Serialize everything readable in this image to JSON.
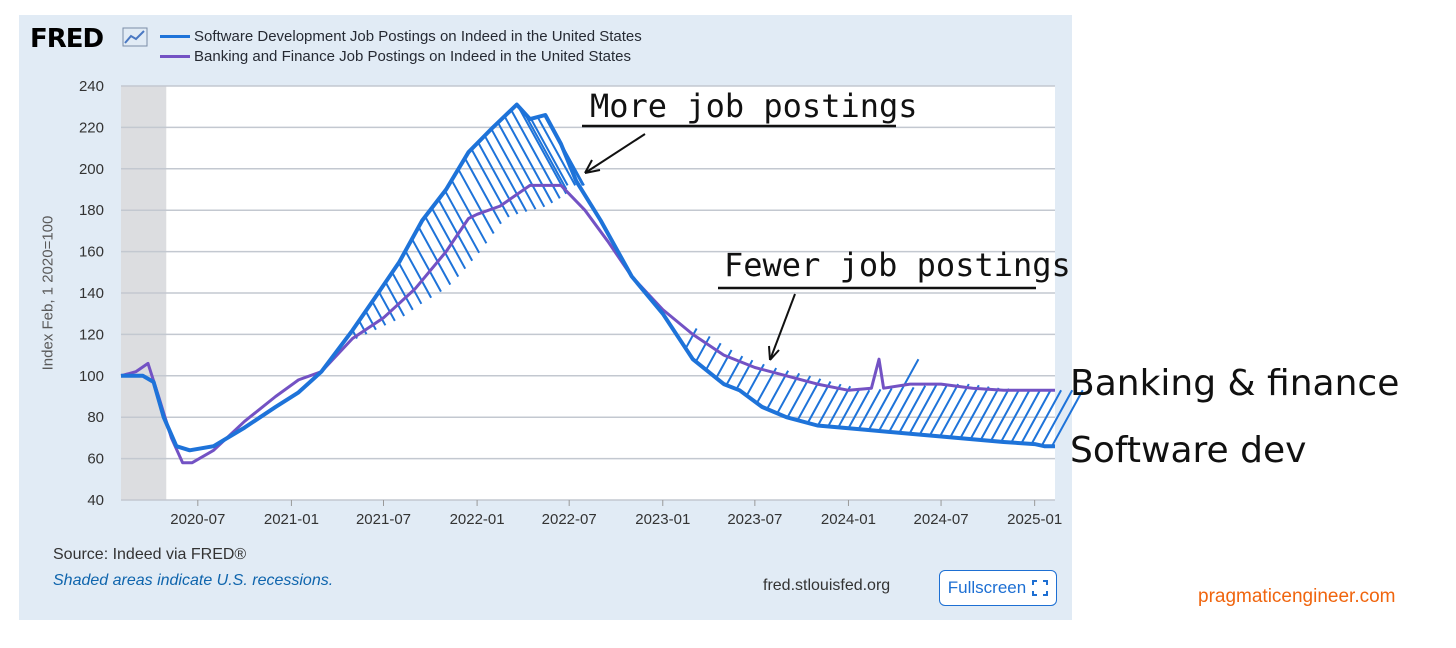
{
  "header": {
    "logo_text": "FRED",
    "logo_icon": "chart-line-icon"
  },
  "legend": [
    {
      "label": "Software Development Job Postings on Indeed in the United States",
      "color": "#1e73d9"
    },
    {
      "label": "Banking and Finance Job Postings on Indeed in the United States",
      "color": "#7352c4"
    }
  ],
  "footer": {
    "source": "Source: Indeed via FRED®",
    "shaded_note": "Shaded areas indicate U.S. recessions.",
    "site": "fred.stlouisfed.org",
    "fullscreen_label": "Fullscreen",
    "fullscreen_icon": "expand-icon"
  },
  "annotations": {
    "more": "More job postings",
    "fewer": "Fewer job postings",
    "banking_label": "Banking & finance",
    "software_label": "Software dev"
  },
  "watermark": "pragmaticengineer.com",
  "chart_data": {
    "type": "line",
    "ylabel": "Index Feb, 1 2020=100",
    "ylim": [
      40,
      240
    ],
    "yticks": [
      40,
      60,
      80,
      100,
      120,
      140,
      160,
      180,
      200,
      220,
      240
    ],
    "xlim": [
      "2020-02-01",
      "2025-02-10"
    ],
    "xticks": [
      "2020-07",
      "2021-01",
      "2021-07",
      "2022-01",
      "2022-07",
      "2023-01",
      "2023-07",
      "2024-01",
      "2024-07",
      "2025-01"
    ],
    "recession": [
      "2020-02-01",
      "2020-04-30"
    ],
    "grid": true,
    "series": [
      {
        "name": "Software Development Job Postings on Indeed in the United States",
        "color": "#1e73d9",
        "points": [
          [
            "2020-02-01",
            100
          ],
          [
            "2020-03-15",
            100
          ],
          [
            "2020-04-05",
            97
          ],
          [
            "2020-04-25",
            80
          ],
          [
            "2020-05-20",
            66
          ],
          [
            "2020-06-15",
            64
          ],
          [
            "2020-08-01",
            66
          ],
          [
            "2020-10-01",
            75
          ],
          [
            "2020-12-01",
            85
          ],
          [
            "2021-01-15",
            92
          ],
          [
            "2021-03-01",
            102
          ],
          [
            "2021-05-01",
            122
          ],
          [
            "2021-06-15",
            138
          ],
          [
            "2021-08-01",
            155
          ],
          [
            "2021-09-15",
            175
          ],
          [
            "2021-11-01",
            190
          ],
          [
            "2021-12-15",
            208
          ],
          [
            "2022-02-01",
            220
          ],
          [
            "2022-03-20",
            231
          ],
          [
            "2022-04-15",
            224
          ],
          [
            "2022-05-15",
            226
          ],
          [
            "2022-06-15",
            212
          ],
          [
            "2022-07-15",
            194
          ],
          [
            "2022-09-01",
            175
          ],
          [
            "2022-11-01",
            148
          ],
          [
            "2023-01-01",
            130
          ],
          [
            "2023-03-01",
            108
          ],
          [
            "2023-05-01",
            96
          ],
          [
            "2023-06-01",
            93
          ],
          [
            "2023-07-15",
            85
          ],
          [
            "2023-09-01",
            80
          ],
          [
            "2023-11-01",
            76
          ],
          [
            "2024-02-01",
            74
          ],
          [
            "2024-05-01",
            72
          ],
          [
            "2024-08-01",
            70
          ],
          [
            "2024-11-01",
            68
          ],
          [
            "2025-01-01",
            67
          ],
          [
            "2025-01-20",
            66
          ],
          [
            "2025-02-10",
            66
          ]
        ]
      },
      {
        "name": "Banking and Finance Job Postings on Indeed in the United States",
        "color": "#7352c4",
        "points": [
          [
            "2020-02-01",
            100
          ],
          [
            "2020-03-01",
            102
          ],
          [
            "2020-03-25",
            106
          ],
          [
            "2020-04-15",
            90
          ],
          [
            "2020-05-10",
            70
          ],
          [
            "2020-06-01",
            58
          ],
          [
            "2020-06-20",
            58
          ],
          [
            "2020-08-01",
            64
          ],
          [
            "2020-10-01",
            78
          ],
          [
            "2020-12-01",
            90
          ],
          [
            "2021-01-15",
            98
          ],
          [
            "2021-03-01",
            102
          ],
          [
            "2021-05-01",
            118
          ],
          [
            "2021-07-01",
            128
          ],
          [
            "2021-09-01",
            142
          ],
          [
            "2021-11-01",
            160
          ],
          [
            "2021-12-15",
            176
          ],
          [
            "2022-01-01",
            178
          ],
          [
            "2022-02-15",
            182
          ],
          [
            "2022-04-15",
            192
          ],
          [
            "2022-06-15",
            192
          ],
          [
            "2022-08-01",
            180
          ],
          [
            "2022-09-15",
            165
          ],
          [
            "2022-11-01",
            148
          ],
          [
            "2023-01-01",
            132
          ],
          [
            "2023-03-01",
            120
          ],
          [
            "2023-05-01",
            110
          ],
          [
            "2023-07-01",
            104
          ],
          [
            "2023-09-01",
            100
          ],
          [
            "2023-11-01",
            96
          ],
          [
            "2024-01-01",
            93
          ],
          [
            "2024-02-15",
            94
          ],
          [
            "2024-03-01",
            108
          ],
          [
            "2024-03-10",
            94
          ],
          [
            "2024-05-01",
            96
          ],
          [
            "2024-07-01",
            96
          ],
          [
            "2024-09-01",
            94
          ],
          [
            "2024-11-01",
            93
          ],
          [
            "2025-01-01",
            93
          ],
          [
            "2025-02-10",
            93
          ]
        ]
      }
    ]
  }
}
